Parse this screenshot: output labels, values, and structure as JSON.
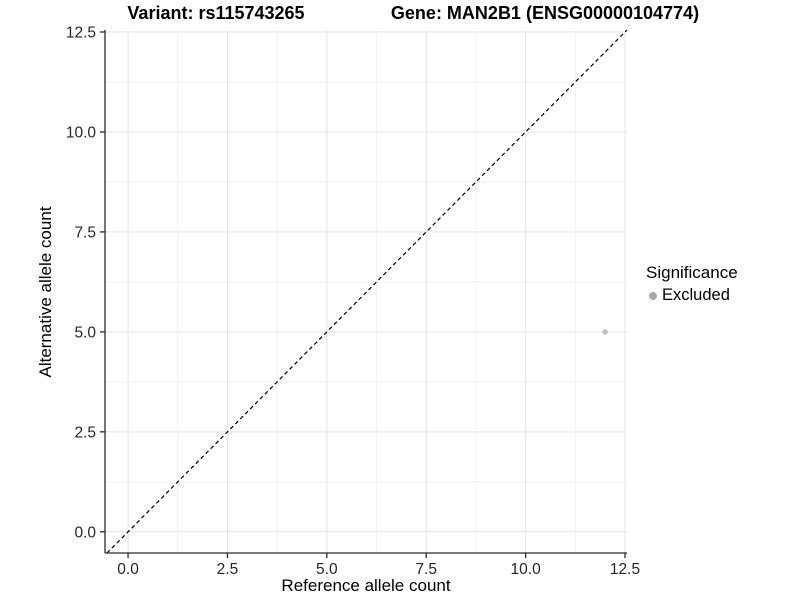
{
  "chart_data": {
    "type": "scatter",
    "title_left": "Variant: rs115743265",
    "title_right": "Gene: MAN2B1 (ENSG00000104774)",
    "xlabel": "Reference allele count",
    "ylabel": "Alternative allele count",
    "x_ticks": [
      0,
      2.5,
      5,
      7.5,
      10,
      12.5
    ],
    "y_ticks": [
      0,
      2.5,
      5,
      7.5,
      10,
      12.5
    ],
    "tick_label_format": "one_decimal",
    "xlim": [
      -0.58,
      12.55
    ],
    "ylim": [
      -0.53,
      12.55
    ],
    "grid": true,
    "series": [
      {
        "name": "Excluded",
        "color": "#bfbfbf",
        "points": [
          {
            "x": 12,
            "y": 5
          }
        ]
      }
    ],
    "reference_line": {
      "kind": "identity",
      "slope": 1,
      "intercept": 0,
      "linetype": "dashed",
      "color": "#000000"
    },
    "legend": {
      "title": "Significance",
      "position": "right",
      "items": [
        {
          "label": "Excluded",
          "color": "#a9a9a9"
        }
      ]
    },
    "colors": {
      "axis_line": "#2b2b2b",
      "tick_text": "#262626",
      "grid_major": "#e4e4e4",
      "grid_minor": "#f1f1f1",
      "background": "#ffffff"
    }
  }
}
